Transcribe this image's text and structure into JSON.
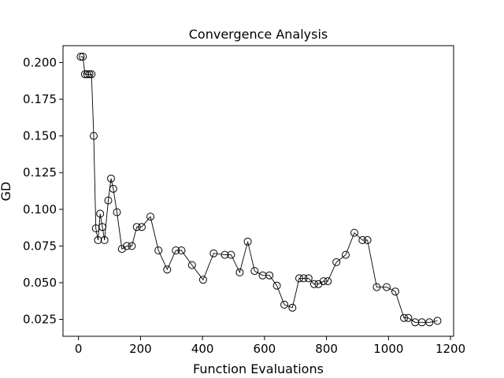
{
  "chart_data": {
    "type": "line",
    "title": "Convergence Analysis",
    "xlabel": "Function Evaluations",
    "ylabel": "GD",
    "xlim": [
      -50,
      1210
    ],
    "ylim": [
      0.0135,
      0.2115
    ],
    "xticks": [
      0,
      200,
      400,
      600,
      800,
      1000,
      1200
    ],
    "xtick_labels": [
      "0",
      "200",
      "400",
      "600",
      "800",
      "1000",
      "1200"
    ],
    "yticks": [
      0.025,
      0.05,
      0.075,
      0.1,
      0.125,
      0.15,
      0.175,
      0.2
    ],
    "ytick_labels": [
      "0.025",
      "0.050",
      "0.075",
      "0.100",
      "0.125",
      "0.150",
      "0.175",
      "0.200"
    ],
    "grid": false,
    "marker": "open-circle",
    "line_color": "#000000",
    "series": [
      {
        "x": [
          7,
          14,
          21,
          28,
          35,
          42,
          49,
          56,
          63,
          70,
          77,
          84,
          96,
          105,
          112,
          124,
          140,
          156,
          172,
          188,
          204,
          232,
          258,
          286,
          314,
          332,
          366,
          402,
          436,
          472,
          492,
          520,
          546,
          568,
          594,
          616,
          640,
          664,
          690,
          712,
          726,
          742,
          760,
          774,
          790,
          804,
          832,
          862,
          890,
          916,
          932,
          962,
          994,
          1022,
          1050,
          1064,
          1086,
          1108,
          1132,
          1158
        ],
        "y": [
          0.204,
          0.204,
          0.192,
          0.192,
          0.192,
          0.192,
          0.15,
          0.087,
          0.079,
          0.097,
          0.088,
          0.079,
          0.106,
          0.121,
          0.114,
          0.098,
          0.073,
          0.075,
          0.075,
          0.088,
          0.088,
          0.095,
          0.072,
          0.059,
          0.072,
          0.072,
          0.062,
          0.052,
          0.07,
          0.069,
          0.069,
          0.057,
          0.078,
          0.058,
          0.055,
          0.055,
          0.048,
          0.035,
          0.033,
          0.053,
          0.053,
          0.053,
          0.049,
          0.049,
          0.051,
          0.051,
          0.064,
          0.069,
          0.084,
          0.079,
          0.079,
          0.047,
          0.047,
          0.044,
          0.026,
          0.026,
          0.023,
          0.023,
          0.023,
          0.024
        ]
      }
    ]
  }
}
